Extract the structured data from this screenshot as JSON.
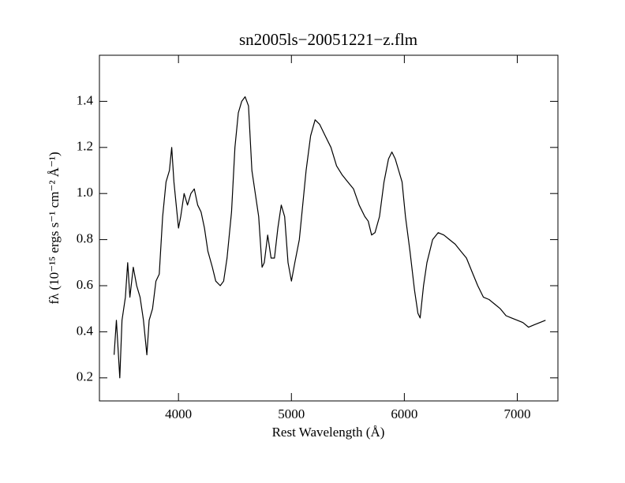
{
  "chart_data": {
    "type": "line",
    "title": "sn2005ls−20051221−z.flm",
    "x_label": "Rest Wavelength (Å)",
    "y_label": "fλ (10⁻¹⁵ ergs s⁻¹ cm⁻² Å⁻¹)",
    "xlim": [
      3300,
      7360
    ],
    "ylim": [
      0.1,
      1.6
    ],
    "xticks": [
      4000,
      5000,
      6000,
      7000
    ],
    "yticks": [
      0.2,
      0.4,
      0.6,
      0.8,
      {
        "value": 1,
        "label": "1.0"
      },
      1.2,
      1.4
    ],
    "x": [
      3430,
      3450,
      3480,
      3500,
      3530,
      3550,
      3570,
      3600,
      3630,
      3660,
      3690,
      3720,
      3740,
      3770,
      3800,
      3830,
      3860,
      3890,
      3920,
      3940,
      3960,
      3980,
      4000,
      4020,
      4050,
      4080,
      4110,
      4140,
      4170,
      4200,
      4230,
      4260,
      4300,
      4330,
      4370,
      4400,
      4430,
      4470,
      4500,
      4530,
      4560,
      4590,
      4620,
      4650,
      4680,
      4710,
      4740,
      4760,
      4790,
      4820,
      4850,
      4880,
      4910,
      4940,
      4970,
      5000,
      5030,
      5070,
      5100,
      5130,
      5170,
      5210,
      5250,
      5300,
      5350,
      5400,
      5450,
      5500,
      5550,
      5600,
      5650,
      5680,
      5710,
      5740,
      5780,
      5820,
      5860,
      5890,
      5920,
      5950,
      5980,
      6010,
      6050,
      6090,
      6120,
      6140,
      6170,
      6200,
      6250,
      6300,
      6350,
      6400,
      6450,
      6500,
      6550,
      6600,
      6650,
      6700,
      6750,
      6800,
      6850,
      6900,
      6950,
      7000,
      7050,
      7100,
      7150,
      7200,
      7250
    ],
    "series": [
      {
        "color": "#000000",
        "values": [
          0.3,
          0.45,
          0.2,
          0.45,
          0.55,
          0.7,
          0.55,
          0.68,
          0.6,
          0.55,
          0.45,
          0.3,
          0.45,
          0.5,
          0.62,
          0.65,
          0.9,
          1.05,
          1.1,
          1.2,
          1.05,
          0.95,
          0.85,
          0.9,
          1.0,
          0.95,
          1.0,
          1.02,
          0.95,
          0.92,
          0.85,
          0.75,
          0.68,
          0.62,
          0.6,
          0.62,
          0.72,
          0.92,
          1.2,
          1.35,
          1.4,
          1.42,
          1.38,
          1.1,
          1.0,
          0.9,
          0.68,
          0.7,
          0.82,
          0.72,
          0.72,
          0.85,
          0.95,
          0.9,
          0.7,
          0.62,
          0.7,
          0.8,
          0.95,
          1.1,
          1.25,
          1.32,
          1.3,
          1.25,
          1.2,
          1.12,
          1.08,
          1.05,
          1.02,
          0.95,
          0.9,
          0.88,
          0.82,
          0.83,
          0.9,
          1.05,
          1.15,
          1.18,
          1.15,
          1.1,
          1.05,
          0.9,
          0.75,
          0.58,
          0.48,
          0.46,
          0.6,
          0.7,
          0.8,
          0.83,
          0.82,
          0.8,
          0.78,
          0.75,
          0.72,
          0.66,
          0.6,
          0.55,
          0.54,
          0.52,
          0.5,
          0.47,
          0.46,
          0.45,
          0.44,
          0.42,
          0.43,
          0.44,
          0.45
        ]
      }
    ]
  }
}
